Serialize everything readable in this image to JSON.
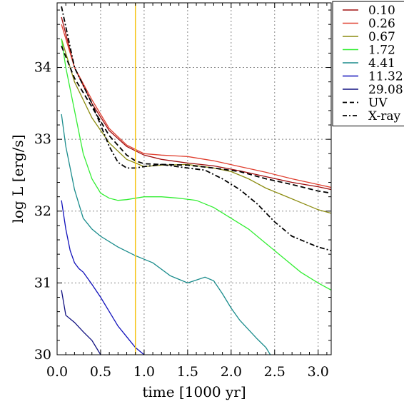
{
  "chart_data": {
    "type": "line",
    "xlabel": "time [1000 yr]",
    "ylabel": "log L [erg/s]",
    "xlim": [
      0.0,
      3.15
    ],
    "ylim": [
      30.0,
      34.9
    ],
    "xticks": [
      0.0,
      0.5,
      1.0,
      1.5,
      2.0,
      2.5,
      3.0
    ],
    "xtick_labels": [
      "0.0",
      "0.5",
      "1.0",
      "1.5",
      "2.0",
      "2.5",
      "3.0"
    ],
    "yticks": [
      30,
      31,
      32,
      33,
      34
    ],
    "ytick_labels": [
      "30",
      "31",
      "32",
      "33",
      "34"
    ],
    "grid": true,
    "legend_position": "top-right",
    "vertical_marker": {
      "x": 0.9,
      "color": "#f5c518"
    },
    "series": [
      {
        "name": "0.10",
        "color": "#a01010",
        "style": "solid",
        "x": [
          0.05,
          0.2,
          0.4,
          0.6,
          0.8,
          1.0,
          1.2,
          1.5,
          1.8,
          2.1,
          2.4,
          2.7,
          3.0,
          3.15
        ],
        "y": [
          34.7,
          34.0,
          33.5,
          33.12,
          32.9,
          32.78,
          32.72,
          32.67,
          32.63,
          32.56,
          32.48,
          32.4,
          32.34,
          32.3
        ]
      },
      {
        "name": "0.26",
        "color": "#e04030",
        "style": "solid",
        "x": [
          0.05,
          0.2,
          0.4,
          0.6,
          0.8,
          1.0,
          1.2,
          1.5,
          1.8,
          2.1,
          2.4,
          2.7,
          3.0,
          3.15
        ],
        "y": [
          34.6,
          34.0,
          33.55,
          33.15,
          32.92,
          32.8,
          32.78,
          32.76,
          32.7,
          32.62,
          32.54,
          32.45,
          32.37,
          32.33
        ]
      },
      {
        "name": "0.67",
        "color": "#8c8c10",
        "style": "solid",
        "x": [
          0.05,
          0.2,
          0.4,
          0.6,
          0.8,
          1.0,
          1.2,
          1.5,
          1.8,
          2.0,
          2.2,
          2.4,
          2.6,
          2.8,
          3.0,
          3.15
        ],
        "y": [
          34.4,
          33.8,
          33.3,
          32.95,
          32.72,
          32.62,
          32.64,
          32.65,
          32.6,
          32.55,
          32.45,
          32.32,
          32.22,
          32.12,
          32.02,
          31.97
        ]
      },
      {
        "name": "1.72",
        "color": "#33ee33",
        "style": "solid",
        "x": [
          0.05,
          0.1,
          0.2,
          0.3,
          0.4,
          0.5,
          0.6,
          0.7,
          0.8,
          1.0,
          1.2,
          1.4,
          1.6,
          1.8,
          2.0,
          2.2,
          2.4,
          2.6,
          2.8,
          3.0,
          3.15
        ],
        "y": [
          34.4,
          34.0,
          33.4,
          32.8,
          32.45,
          32.25,
          32.18,
          32.15,
          32.16,
          32.2,
          32.2,
          32.18,
          32.15,
          32.05,
          31.9,
          31.75,
          31.55,
          31.35,
          31.15,
          31.0,
          30.9
        ]
      },
      {
        "name": "4.41",
        "color": "#1a8c8c",
        "style": "solid",
        "x": [
          0.05,
          0.1,
          0.2,
          0.3,
          0.4,
          0.5,
          0.7,
          0.9,
          1.1,
          1.3,
          1.5,
          1.7,
          1.8,
          1.9,
          2.0,
          2.1,
          2.2,
          2.3,
          2.4,
          2.45
        ],
        "y": [
          33.35,
          32.9,
          32.3,
          31.9,
          31.75,
          31.65,
          31.5,
          31.38,
          31.28,
          31.1,
          31.0,
          31.08,
          31.03,
          30.85,
          30.65,
          30.48,
          30.35,
          30.22,
          30.1,
          30.0
        ]
      },
      {
        "name": "11.32",
        "color": "#1010bb",
        "style": "solid",
        "x": [
          0.05,
          0.1,
          0.15,
          0.2,
          0.25,
          0.3,
          0.4,
          0.5,
          0.6,
          0.7,
          0.8,
          0.9,
          1.0
        ],
        "y": [
          32.15,
          31.75,
          31.45,
          31.28,
          31.2,
          31.15,
          30.98,
          30.8,
          30.6,
          30.4,
          30.25,
          30.1,
          30.0
        ]
      },
      {
        "name": "29.08",
        "color": "#101080",
        "style": "solid",
        "x": [
          0.05,
          0.1,
          0.2,
          0.3,
          0.4,
          0.5
        ],
        "y": [
          30.9,
          30.55,
          30.45,
          30.32,
          30.2,
          30.0
        ]
      },
      {
        "name": "UV",
        "color": "#000000",
        "style": "dashed",
        "x": [
          0.05,
          0.2,
          0.4,
          0.6,
          0.8,
          0.9,
          1.0,
          1.2,
          1.5,
          1.8,
          2.1,
          2.4,
          2.7,
          3.0,
          3.15
        ],
        "y": [
          34.3,
          33.85,
          33.45,
          33.05,
          32.78,
          32.7,
          32.66,
          32.65,
          32.64,
          32.6,
          32.55,
          32.45,
          32.37,
          32.28,
          32.25
        ]
      },
      {
        "name": "X-ray",
        "color": "#000000",
        "style": "dashdot",
        "x": [
          0.05,
          0.2,
          0.4,
          0.6,
          0.7,
          0.8,
          0.9,
          1.0,
          1.2,
          1.5,
          1.7,
          1.9,
          2.1,
          2.3,
          2.5,
          2.7,
          2.9,
          3.0,
          3.15
        ],
        "y": [
          34.85,
          34.0,
          33.5,
          32.9,
          32.68,
          32.6,
          32.6,
          32.62,
          32.65,
          32.6,
          32.57,
          32.45,
          32.3,
          32.1,
          31.85,
          31.65,
          31.55,
          31.5,
          31.45
        ]
      }
    ]
  }
}
